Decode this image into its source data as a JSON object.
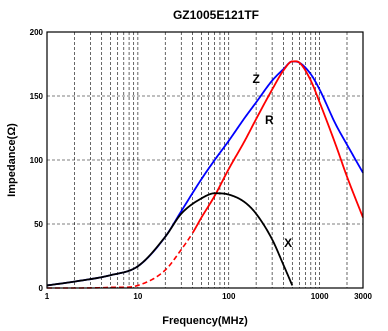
{
  "chart_data": {
    "type": "line",
    "title": "GZ1005E121TF",
    "xlabel": "Frequency(MHz)",
    "ylabel": "Impedance(Ω)",
    "x_scale": "log",
    "xlim": [
      1,
      3000
    ],
    "ylim": [
      0,
      200
    ],
    "x_ticks": [
      {
        "value": 1,
        "label": "1"
      },
      {
        "value": 10,
        "label": "10"
      },
      {
        "value": 100,
        "label": "100"
      },
      {
        "value": 1000,
        "label": "1000"
      },
      {
        "value": 3000,
        "label": "3000"
      }
    ],
    "y_ticks": [
      {
        "value": 0,
        "label": "0"
      },
      {
        "value": 50,
        "label": "50"
      },
      {
        "value": 100,
        "label": "100"
      },
      {
        "value": 150,
        "label": "150"
      },
      {
        "value": 200,
        "label": "200"
      }
    ],
    "grid": true,
    "series": [
      {
        "name": "Z",
        "color": "#0000ff",
        "line_style": "solid",
        "x": [
          1,
          2,
          5,
          10,
          20,
          30,
          50,
          70,
          100,
          150,
          200,
          300,
          400,
          500,
          600,
          800,
          1000,
          1500,
          2000,
          3000
        ],
        "y": [
          2,
          5,
          10,
          17,
          40,
          60,
          85,
          100,
          115,
          133,
          145,
          162,
          171,
          177,
          176,
          167,
          155,
          128,
          112,
          90
        ]
      },
      {
        "name": "R",
        "color": "#ff0000",
        "line_style": "solid_dashed_below_40MHz",
        "x": [
          1,
          2,
          5,
          10,
          20,
          30,
          40,
          50,
          70,
          100,
          150,
          200,
          300,
          400,
          500,
          600,
          800,
          1000,
          1500,
          2000,
          3000
        ],
        "y": [
          0,
          0,
          0.5,
          2,
          14,
          30,
          43,
          55,
          72,
          93,
          115,
          132,
          155,
          170,
          177,
          176,
          162,
          145,
          112,
          87,
          55
        ]
      },
      {
        "name": "X",
        "color": "#000000",
        "line_style": "solid",
        "x": [
          1,
          2,
          5,
          10,
          20,
          30,
          50,
          70,
          100,
          150,
          200,
          300,
          400,
          500
        ],
        "y": [
          2,
          5,
          10,
          17,
          40,
          58,
          70,
          74,
          73,
          67,
          58,
          38,
          18,
          2
        ]
      }
    ],
    "series_labels": [
      {
        "text": "Z",
        "x": 200,
        "y": 160
      },
      {
        "text": "R",
        "x": 280,
        "y": 128
      },
      {
        "text": "X",
        "x": 450,
        "y": 32
      }
    ]
  }
}
